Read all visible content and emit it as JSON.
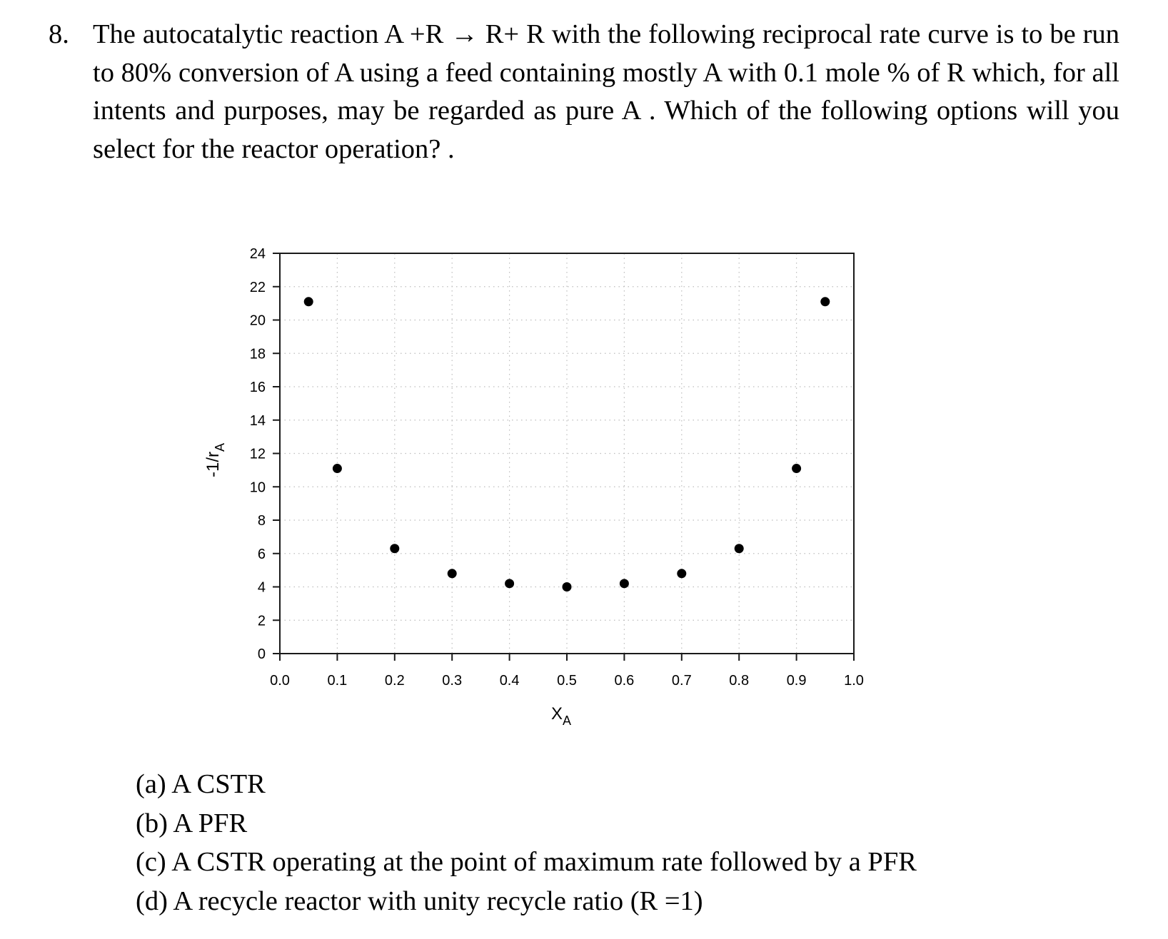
{
  "question": {
    "number": "8.",
    "text": "The autocatalytic reaction A +R → R+ R with the following reciprocal rate curve is to be run to 80% conversion of A using a feed containing mostly A with 0.1 mole % of R which, for all intents and purposes, may be regarded as pure A . Which of the following options will you select for the reactor operation? ."
  },
  "chart_data": {
    "type": "scatter",
    "title": "",
    "xlabel": "X_A",
    "xlabel_main": "X",
    "xlabel_sub": "A",
    "ylabel": "-1/r_A",
    "ylabel_main": "-1/r",
    "ylabel_sub": "A",
    "xlim": [
      0.0,
      1.0
    ],
    "ylim": [
      0,
      24
    ],
    "x_ticks": [
      "0.0",
      "0.1",
      "0.2",
      "0.3",
      "0.4",
      "0.5",
      "0.6",
      "0.7",
      "0.8",
      "0.9",
      "1.0"
    ],
    "y_ticks": [
      "0",
      "2",
      "4",
      "6",
      "8",
      "10",
      "12",
      "14",
      "16",
      "18",
      "20",
      "22",
      "24"
    ],
    "grid": true,
    "grid_style": "dotted",
    "legend": null,
    "marker_color": "#000000",
    "series": [
      {
        "name": "-1/rA",
        "x": [
          0.05,
          0.1,
          0.2,
          0.3,
          0.4,
          0.5,
          0.6,
          0.7,
          0.8,
          0.9,
          0.95
        ],
        "y": [
          21.1,
          11.1,
          6.3,
          4.8,
          4.2,
          4.0,
          4.2,
          4.8,
          6.3,
          11.1,
          21.1
        ]
      }
    ]
  },
  "options": [
    {
      "label": "(a)",
      "text": "A CSTR"
    },
    {
      "label": "(b)",
      "text": "A PFR"
    },
    {
      "label": "(c)",
      "text": "A CSTR operating at the point of maximum rate followed by a PFR"
    },
    {
      "label": "(d)",
      "text": "A recycle reactor with unity recycle ratio (R =1)"
    }
  ]
}
